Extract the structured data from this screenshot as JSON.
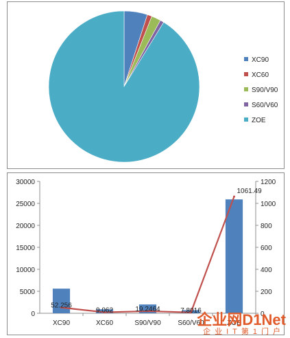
{
  "chart_data": [
    {
      "type": "pie",
      "categories": [
        "XC90",
        "XC60",
        "S90/V90",
        "S60/V60",
        "ZOE"
      ],
      "values": [
        5,
        1,
        2,
        0.8,
        91.2
      ],
      "colors": [
        "#4f81bd",
        "#c0504d",
        "#9bbb59",
        "#8064a2",
        "#4bacc6"
      ],
      "legend": "right",
      "title": ""
    },
    {
      "type": "bar",
      "categories": [
        "XC90",
        "XC60",
        "S90/V90",
        "S60/V60",
        "ZOE"
      ],
      "series": [
        {
          "type": "bar",
          "axis": "left",
          "color": "#4f81bd",
          "values": [
            5600,
            900,
            2000,
            700,
            25900
          ]
        },
        {
          "type": "line",
          "axis": "right",
          "color": "#c0504d",
          "values": [
            52.256,
            9.062,
            19.2464,
            7.8016,
            1061.49
          ],
          "labels": [
            "52.256",
            "9.062",
            "19.2464",
            "7.8016",
            "1061.49"
          ]
        }
      ],
      "ylim_left": [
        0,
        30000
      ],
      "yticks_left": [
        "0",
        "5000",
        "10000",
        "15000",
        "20000",
        "25000",
        "30000"
      ],
      "ylim_right": [
        0,
        1200
      ],
      "yticks_right": [
        "0",
        "200",
        "400",
        "600",
        "800",
        "1000",
        "1200"
      ],
      "grid": false,
      "title": ""
    }
  ],
  "watermark": {
    "main": "企业网D1Net",
    "sub": "企业IT第1门户"
  }
}
